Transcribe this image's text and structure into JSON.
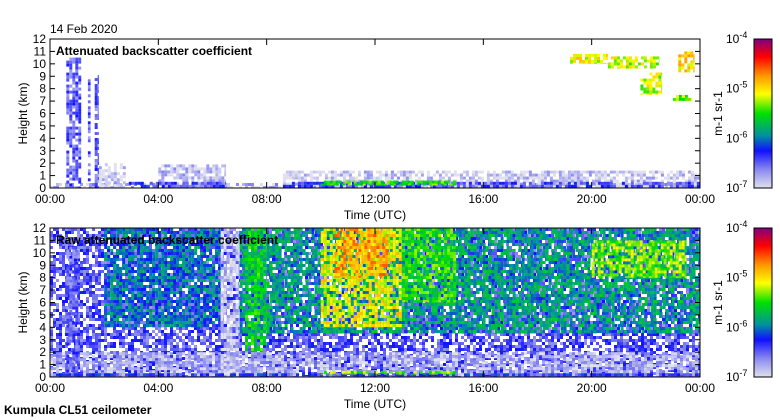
{
  "date": "14 Feb 2020",
  "footer": "Kumpula CL51 ceilometer",
  "chart_data": [
    {
      "type": "heatmap",
      "title": "Attenuated backscatter coefficient",
      "xlabel": "Time (UTC)",
      "ylabel": "Height (km)",
      "xlim": [
        0,
        24
      ],
      "ylim": [
        0,
        12
      ],
      "xticks": [
        "00:00",
        "04:00",
        "08:00",
        "12:00",
        "16:00",
        "20:00",
        "00:00"
      ],
      "yticks": [
        "0",
        "1",
        "2",
        "3",
        "4",
        "5",
        "6",
        "7",
        "8",
        "9",
        "10",
        "11",
        "12"
      ],
      "colorbar": {
        "label": "m-1 sr-1",
        "range_log10": [
          -7,
          -4
        ],
        "ticks": [
          "10-7",
          "10-6",
          "10-5",
          "10-4"
        ]
      },
      "regions": [
        {
          "t0": 0,
          "t1": 24,
          "h0": 0,
          "h1": 0.4,
          "log10": -6.8
        },
        {
          "t0": 0.6,
          "t1": 1.15,
          "h0": 0,
          "h1": 10.5,
          "log10": -6.5
        },
        {
          "t0": 1.4,
          "t1": 1.5,
          "h0": 0,
          "h1": 9,
          "log10": -6.5
        },
        {
          "t0": 1.65,
          "t1": 1.8,
          "h0": 0,
          "h1": 9.1,
          "log10": -6.5
        },
        {
          "t0": 1.8,
          "t1": 2.8,
          "h0": 0,
          "h1": 2,
          "log10": -6.85
        },
        {
          "t0": 4,
          "t1": 6.5,
          "h0": 0,
          "h1": 1.9,
          "log10": -6.85
        },
        {
          "t0": 8.6,
          "t1": 24,
          "h0": 0,
          "h1": 1.4,
          "log10": -6.9
        },
        {
          "t0": 2.8,
          "t1": 6.5,
          "h0": 0,
          "h1": 0.5,
          "log10": -6.4
        },
        {
          "t0": 8.6,
          "t1": 24,
          "h0": 0,
          "h1": 0.5,
          "log10": -6.4
        },
        {
          "t0": 10,
          "t1": 15,
          "h0": 0.2,
          "h1": 0.6,
          "log10": -5.5
        },
        {
          "t0": 19.2,
          "t1": 20.6,
          "h0": 10,
          "h1": 10.8,
          "log10": -5.1
        },
        {
          "t0": 20.6,
          "t1": 22.5,
          "h0": 9.6,
          "h1": 10.6,
          "log10": -5.2
        },
        {
          "t0": 21.8,
          "t1": 22.6,
          "h0": 7.5,
          "h1": 9.3,
          "log10": -5.2
        },
        {
          "t0": 23.2,
          "t1": 23.8,
          "h0": 9.3,
          "h1": 11,
          "log10": -5.0
        },
        {
          "t0": 23,
          "t1": 23.7,
          "h0": 7,
          "h1": 7.5,
          "log10": -5.3
        }
      ]
    },
    {
      "type": "heatmap",
      "title": "Raw attenuated backscatter coefficient",
      "xlabel": "Time (UTC)",
      "ylabel": "Height (km)",
      "xlim": [
        0,
        24
      ],
      "ylim": [
        0,
        12
      ],
      "xticks": [
        "00:00",
        "04:00",
        "08:00",
        "12:00",
        "16:00",
        "20:00",
        "00:00"
      ],
      "yticks": [
        "0",
        "1",
        "2",
        "3",
        "4",
        "5",
        "6",
        "7",
        "8",
        "9",
        "10",
        "11",
        "12"
      ],
      "colorbar": {
        "label": "m-1 sr-1",
        "range_log10": [
          -7,
          -4
        ],
        "ticks": [
          "10-7",
          "10-6",
          "10-5",
          "10-4"
        ]
      },
      "regions": [
        {
          "t0": 0,
          "t1": 24,
          "h0": 0,
          "h1": 12,
          "log10": -6.45
        },
        {
          "t0": 2,
          "t1": 6.3,
          "h0": 4,
          "h1": 12,
          "log10": -6.0
        },
        {
          "t0": 7,
          "t1": 24,
          "h0": 3.5,
          "h1": 12,
          "log10": -5.85
        },
        {
          "t0": 0,
          "t1": 24,
          "h0": 0,
          "h1": 2,
          "log10": -6.8
        },
        {
          "t0": 6.3,
          "t1": 7,
          "h0": 0,
          "h1": 12,
          "log10": -6.9
        },
        {
          "t0": 7.2,
          "t1": 8,
          "h0": 2,
          "h1": 12,
          "log10": -5.6
        },
        {
          "t0": 10,
          "t1": 13,
          "h0": 4,
          "h1": 12,
          "log10": -5.1
        },
        {
          "t0": 10.5,
          "t1": 12.5,
          "h0": 8,
          "h1": 12,
          "log10": -4.8
        },
        {
          "t0": 13,
          "t1": 15,
          "h0": 6,
          "h1": 12,
          "log10": -5.5
        },
        {
          "t0": 0.6,
          "t1": 1.1,
          "h0": 0,
          "h1": 10.5,
          "log10": -6.5
        },
        {
          "t0": 20,
          "t1": 23.5,
          "h0": 8,
          "h1": 11,
          "log10": -5.3
        },
        {
          "t0": 0,
          "t1": 24,
          "h0": 0,
          "h1": 0.3,
          "log10": -6.3
        },
        {
          "t0": 10,
          "t1": 15,
          "h0": 0.2,
          "h1": 0.5,
          "log10": -5.3
        }
      ]
    }
  ]
}
